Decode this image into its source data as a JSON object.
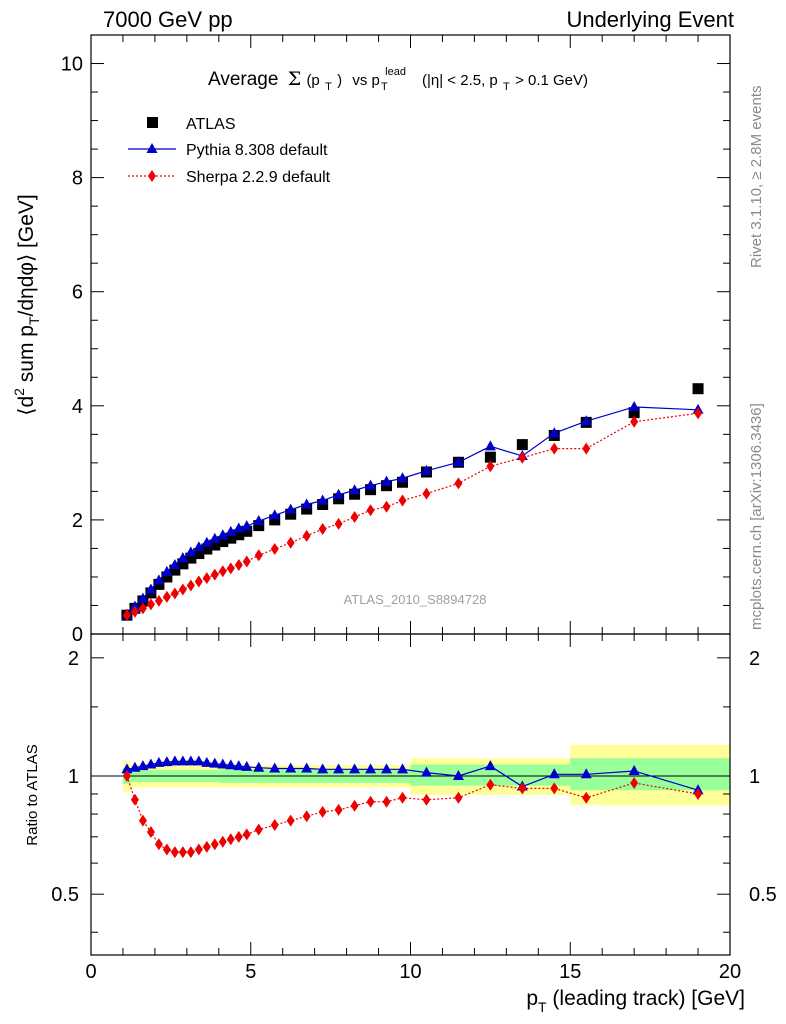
{
  "header": {
    "left": "7000 GeV pp",
    "right": "Underlying Event"
  },
  "side_labels": {
    "rivet": "Rivet 3.1.10, ≥ 2.8M events",
    "mcplots": "mcplots.cern.ch [arXiv:1306.3436]"
  },
  "watermark": "ATLAS_2010_S8894728",
  "colors": {
    "atlas": "#000000",
    "pythia": "#0000cc",
    "sherpa": "#ee0000",
    "band_inner": "#99ff99",
    "band_outer": "#ffff99",
    "side_text": "#8a8a8a",
    "watermark": "#a0a0a0"
  },
  "chart_data": [
    {
      "type": "line",
      "panel": "main",
      "title": "Average Σ(pT) vs pT lead (|η| < 2.5, pT > 0.1 GeV)",
      "title_parts": {
        "average": "Average",
        "sigma": "Σ",
        "pt_open": "(p",
        "pt_sub": "T",
        "close": ")",
        "vs": "vs p",
        "lead_sup": "lead",
        "lead_sub": "T",
        "cuts_a": "(|η| < 2.5, p",
        "cuts_sub": "T",
        "cuts_b": " > 0.1 GeV)"
      },
      "ylabel": "⟨d² sum pT/dηdφ⟩ [GeV]",
      "ylabel_parts": {
        "open": "⟨d",
        "sup2": "2",
        "mid": " sum p",
        "sub": "T",
        "rest": "/dηdφ⟩ [GeV]"
      },
      "xlim": [
        0,
        20
      ],
      "ylim": [
        0,
        10.5
      ],
      "yticks": [
        0,
        2,
        4,
        6,
        8,
        10
      ],
      "ytick_labels": [
        "0",
        "2",
        "4",
        "6",
        "8",
        "10"
      ],
      "legend_position": "top-left",
      "x": [
        1.125,
        1.375,
        1.625,
        1.875,
        2.125,
        2.375,
        2.625,
        2.875,
        3.125,
        3.375,
        3.625,
        3.875,
        4.125,
        4.375,
        4.625,
        4.875,
        5.25,
        5.75,
        6.25,
        6.75,
        7.25,
        7.75,
        8.25,
        8.75,
        9.25,
        9.75,
        10.5,
        11.5,
        12.5,
        13.5,
        14.5,
        15.5,
        17.0,
        19.0
      ],
      "series": [
        {
          "name": "ATLAS",
          "marker": "square",
          "values": [
            0.33,
            0.45,
            0.58,
            0.72,
            0.87,
            1.0,
            1.12,
            1.23,
            1.33,
            1.41,
            1.49,
            1.56,
            1.62,
            1.68,
            1.74,
            1.8,
            1.9,
            2.0,
            2.1,
            2.19,
            2.27,
            2.37,
            2.45,
            2.53,
            2.6,
            2.66,
            2.84,
            3.01,
            3.1,
            3.32,
            3.48,
            3.71,
            3.88,
            4.3
          ]
        },
        {
          "name": "Pythia 8.308 default",
          "marker": "triangle",
          "line": "solid",
          "values": [
            0.34,
            0.48,
            0.62,
            0.78,
            0.94,
            1.09,
            1.21,
            1.33,
            1.43,
            1.52,
            1.6,
            1.67,
            1.73,
            1.79,
            1.85,
            1.89,
            1.98,
            2.08,
            2.18,
            2.27,
            2.34,
            2.44,
            2.52,
            2.6,
            2.67,
            2.73,
            2.86,
            3.01,
            3.29,
            3.12,
            3.52,
            3.73,
            3.98,
            3.93
          ]
        },
        {
          "name": "Sherpa 2.2.9 default",
          "marker": "diamond",
          "line": "dotted",
          "values": [
            0.33,
            0.39,
            0.45,
            0.52,
            0.58,
            0.65,
            0.71,
            0.78,
            0.85,
            0.92,
            0.98,
            1.04,
            1.1,
            1.15,
            1.21,
            1.27,
            1.38,
            1.49,
            1.6,
            1.72,
            1.84,
            1.93,
            2.05,
            2.17,
            2.23,
            2.34,
            2.46,
            2.64,
            2.94,
            3.09,
            3.25,
            3.25,
            3.72,
            3.87
          ]
        }
      ]
    },
    {
      "type": "line",
      "panel": "ratio",
      "ylabel": "Ratio to ATLAS",
      "xlabel": "pT (leading track) [GeV]",
      "xlabel_parts": {
        "p": "p",
        "sub": "T",
        "rest": " (leading track) [GeV]"
      },
      "xlim": [
        0,
        20
      ],
      "ylim": [
        0.35,
        2.3
      ],
      "log_y": true,
      "xticks": [
        0,
        5,
        10,
        15,
        20
      ],
      "xtick_labels": [
        "0",
        "5",
        "10",
        "15",
        "20"
      ],
      "yticks": [
        0.5,
        1,
        2
      ],
      "ytick_labels": [
        "0.5",
        "1",
        "2"
      ],
      "bands": [
        {
          "x_from": 1.0,
          "x_to": 1.25,
          "inner": [
            0.955,
            1.045
          ],
          "outer": [
            0.91,
            1.09
          ]
        },
        {
          "x_from": 1.25,
          "x_to": 4.0,
          "inner": [
            0.965,
            1.035
          ],
          "outer": [
            0.935,
            1.065
          ]
        },
        {
          "x_from": 4.0,
          "x_to": 10.0,
          "inner": [
            0.96,
            1.04
          ],
          "outer": [
            0.935,
            1.065
          ]
        },
        {
          "x_from": 10.0,
          "x_to": 15.0,
          "inner": [
            0.945,
            1.07
          ],
          "outer": [
            0.895,
            1.11
          ]
        },
        {
          "x_from": 15.0,
          "x_to": 16.0,
          "inner": [
            0.92,
            1.11
          ],
          "outer": [
            0.845,
            1.2
          ]
        },
        {
          "x_from": 16.0,
          "x_to": 20.0,
          "inner": [
            0.92,
            1.11
          ],
          "outer": [
            0.84,
            1.2
          ]
        }
      ],
      "series": [
        {
          "name": "Pythia 8.308 default",
          "marker": "triangle",
          "line": "solid",
          "values": [
            1.04,
            1.05,
            1.06,
            1.07,
            1.08,
            1.085,
            1.09,
            1.09,
            1.09,
            1.09,
            1.08,
            1.075,
            1.07,
            1.065,
            1.06,
            1.055,
            1.05,
            1.045,
            1.045,
            1.045,
            1.04,
            1.04,
            1.04,
            1.04,
            1.04,
            1.04,
            1.02,
            1.0,
            1.06,
            0.94,
            1.01,
            1.01,
            1.03,
            0.92
          ]
        },
        {
          "name": "Sherpa 2.2.9 default",
          "marker": "diamond",
          "line": "dotted",
          "values": [
            1.0,
            0.87,
            0.77,
            0.72,
            0.67,
            0.65,
            0.64,
            0.64,
            0.64,
            0.65,
            0.66,
            0.67,
            0.68,
            0.69,
            0.7,
            0.71,
            0.73,
            0.75,
            0.77,
            0.79,
            0.81,
            0.82,
            0.84,
            0.86,
            0.86,
            0.88,
            0.87,
            0.88,
            0.95,
            0.93,
            0.93,
            0.88,
            0.96,
            0.9
          ]
        }
      ]
    }
  ]
}
